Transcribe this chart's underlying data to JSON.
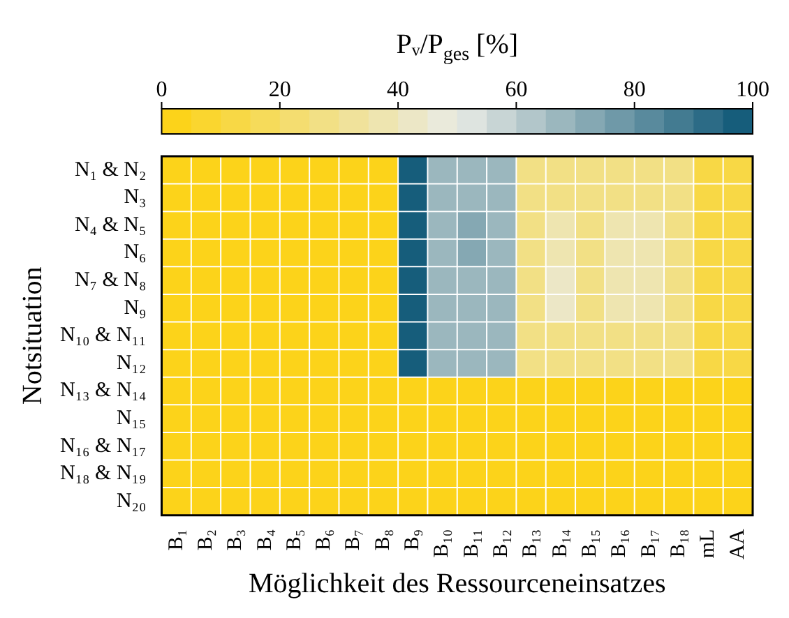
{
  "chart_data": {
    "type": "heatmap",
    "xlabel": "Möglichkeit des Ressourceneinsatzes",
    "ylabel": "Notsituation",
    "clabel": "Pᵥ/P$_{ges}$ [%]",
    "categories": [
      "B₁",
      "B₂",
      "B₃",
      "B₄",
      "B₅",
      "B₆",
      "B₇",
      "B₈",
      "B₉",
      "B₁₀",
      "B₁₁",
      "B₁₂",
      "B₁₃",
      "B₁₄",
      "B₁₅",
      "B₁₆",
      "B₁₇",
      "B₁₈",
      "mL",
      "AA"
    ],
    "y_categories": [
      "N₁ & N₂",
      "N₃",
      "N₄ & N₅",
      "N₆",
      "N₇ & N₈",
      "N₉",
      "N₁₀ & N₁₁",
      "N₁₂",
      "N₁₃ & N₁₄",
      "N₁₅",
      "N₁₆ & N₁₇",
      "N₁₈ & N₁₉",
      "N₂₀"
    ],
    "cells": [
      [
        0,
        0,
        0,
        0,
        0,
        0,
        0,
        0,
        100,
        67,
        67,
        67,
        27,
        27,
        27,
        27,
        27,
        27,
        12,
        12
      ],
      [
        0,
        0,
        0,
        0,
        0,
        0,
        0,
        0,
        100,
        67,
        67,
        67,
        27,
        27,
        27,
        27,
        27,
        27,
        12,
        12
      ],
      [
        0,
        3,
        0,
        0,
        0,
        0,
        0,
        0,
        100,
        67,
        72,
        67,
        27,
        37,
        27,
        37,
        37,
        27,
        12,
        12
      ],
      [
        0,
        3,
        0,
        0,
        0,
        0,
        0,
        0,
        100,
        67,
        72,
        67,
        27,
        37,
        27,
        37,
        37,
        27,
        12,
        12
      ],
      [
        0,
        3,
        0,
        0,
        0,
        0,
        0,
        0,
        100,
        67,
        67,
        67,
        27,
        42,
        27,
        37,
        37,
        27,
        12,
        12
      ],
      [
        0,
        3,
        0,
        0,
        0,
        0,
        0,
        0,
        100,
        67,
        67,
        67,
        27,
        42,
        27,
        37,
        37,
        27,
        12,
        12
      ],
      [
        0,
        0,
        0,
        0,
        0,
        0,
        0,
        0,
        100,
        67,
        67,
        67,
        27,
        27,
        27,
        27,
        27,
        27,
        12,
        12
      ],
      [
        0,
        0,
        0,
        0,
        0,
        0,
        0,
        0,
        100,
        67,
        67,
        67,
        27,
        27,
        27,
        27,
        27,
        27,
        12,
        12
      ],
      [
        0,
        3,
        0,
        0,
        0,
        0,
        0,
        0,
        0,
        0,
        0,
        0,
        0,
        3,
        0,
        0,
        0,
        0,
        0,
        0
      ],
      [
        0,
        3,
        0,
        0,
        0,
        0,
        0,
        0,
        0,
        0,
        0,
        0,
        0,
        3,
        0,
        0,
        0,
        0,
        0,
        0
      ],
      [
        0,
        3,
        0,
        0,
        0,
        0,
        0,
        0,
        0,
        0,
        0,
        0,
        0,
        3,
        0,
        0,
        0,
        0,
        0,
        0
      ],
      [
        0,
        0,
        0,
        0,
        0,
        0,
        0,
        0,
        0,
        0,
        0,
        0,
        0,
        0,
        0,
        0,
        0,
        0,
        0,
        0
      ],
      [
        0,
        0,
        0,
        0,
        0,
        0,
        0,
        0,
        0,
        0,
        0,
        0,
        0,
        0,
        0,
        0,
        0,
        0,
        0,
        0
      ]
    ],
    "clim": [
      0,
      100
    ],
    "cticks": [
      0,
      20,
      40,
      60,
      80,
      100
    ],
    "grid": true
  }
}
